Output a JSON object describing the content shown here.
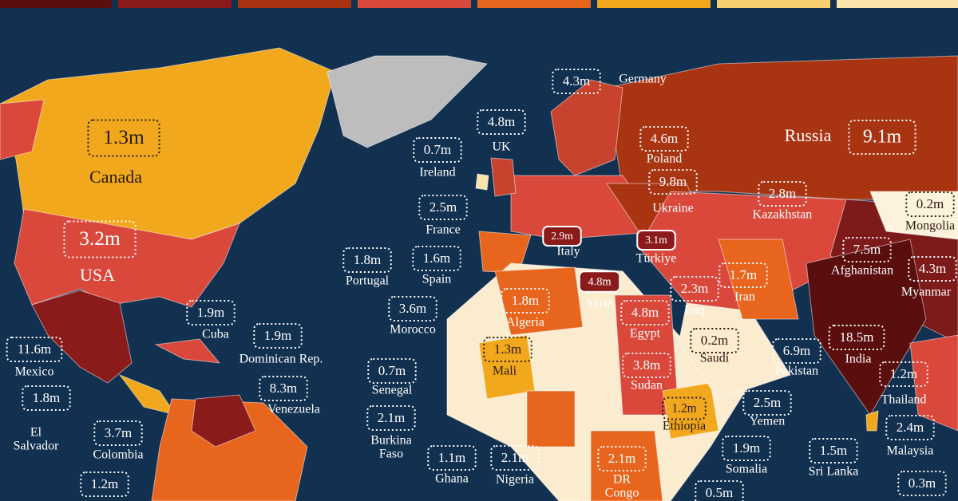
{
  "labels": [
    {
      "value": "1.3m",
      "name": [
        "Canada"
      ]
    },
    {
      "value": "3.2m",
      "name": [
        "USA"
      ]
    },
    {
      "value": "9.1m",
      "name": [
        "Russia"
      ]
    },
    {
      "value": "4.3m",
      "name": [
        "Germany"
      ]
    },
    {
      "value": "4.8m",
      "name": [
        "UK"
      ]
    },
    {
      "value": "0.7m",
      "name": [
        "Ireland"
      ]
    },
    {
      "value": "4.6m",
      "name": [
        "Poland"
      ]
    },
    {
      "value": "9.8m",
      "name": [
        "Ukraine"
      ]
    },
    {
      "value": "2.8m",
      "name": [
        "Kazakhstan"
      ]
    },
    {
      "value": "0.2m",
      "name": [
        "Mongolia"
      ]
    },
    {
      "value": "2.5m",
      "name": [
        "France"
      ]
    },
    {
      "value": "2.9m",
      "name": [
        "Italy"
      ]
    },
    {
      "value": "3.1m",
      "name": [
        "Türkiye"
      ]
    },
    {
      "value": "7.5m",
      "name": [
        "Afghanistan"
      ]
    },
    {
      "value": "4.3m",
      "name": [
        "Myanmar"
      ]
    },
    {
      "value": "1.8m",
      "name": [
        "Portugal"
      ]
    },
    {
      "value": "1.6m",
      "name": [
        "Spain"
      ]
    },
    {
      "value": "1.7m",
      "name": [
        "Iran"
      ]
    },
    {
      "value": "4.8m",
      "name": [
        "Syria"
      ]
    },
    {
      "value": "2.3m",
      "name": [
        "Iraq"
      ]
    },
    {
      "value": "3.6m",
      "name": [
        "Morocco"
      ]
    },
    {
      "value": "1.8m",
      "name": [
        "Algeria"
      ]
    },
    {
      "value": "4.8m",
      "name": [
        "Egypt"
      ]
    },
    {
      "value": "0.2m",
      "name": [
        "Saudi"
      ]
    },
    {
      "value": "6.9m",
      "name": [
        "Pakistan"
      ]
    },
    {
      "value": "18.5m",
      "name": [
        "India"
      ]
    },
    {
      "value": "1.9m",
      "name": [
        "Cuba"
      ]
    },
    {
      "value": "1.9m",
      "name": [
        "Dominican Rep."
      ]
    },
    {
      "value": "11.6m",
      "name": [
        "Mexico"
      ]
    },
    {
      "value": "1.3m",
      "name": [
        "Mali"
      ]
    },
    {
      "value": "3.8m",
      "name": [
        "Sudan"
      ]
    },
    {
      "value": "1.2m",
      "name": [
        "Thailand"
      ]
    },
    {
      "value": "0.7m",
      "name": [
        "Senegal"
      ]
    },
    {
      "value": "8.3m",
      "name": [
        "Venezuela"
      ]
    },
    {
      "value": "1.8m",
      "name": [
        "El",
        "Salvador"
      ]
    },
    {
      "value": "1.2m",
      "name": [
        "Ethiopia"
      ]
    },
    {
      "value": "2.5m",
      "name": [
        "Yemen"
      ]
    },
    {
      "value": "2.1m",
      "name": [
        "Burkina",
        "Faso"
      ]
    },
    {
      "value": "3.7m",
      "name": [
        "Colombia"
      ]
    },
    {
      "value": "2.4m",
      "name": [
        "Malaysia"
      ]
    },
    {
      "value": "1.1m",
      "name": [
        "Ghana"
      ]
    },
    {
      "value": "2.1m",
      "name": [
        "Nigeria"
      ]
    },
    {
      "value": "2.1m",
      "name": [
        "DR",
        "Congo"
      ]
    },
    {
      "value": "1.9m",
      "name": [
        "Somalia"
      ]
    },
    {
      "value": "1.5m",
      "name": [
        "Sri Lanka"
      ]
    },
    {
      "value": "1.2m",
      "name": []
    },
    {
      "value": "0.5m",
      "name": []
    },
    {
      "value": "0.3m",
      "name": []
    }
  ]
}
